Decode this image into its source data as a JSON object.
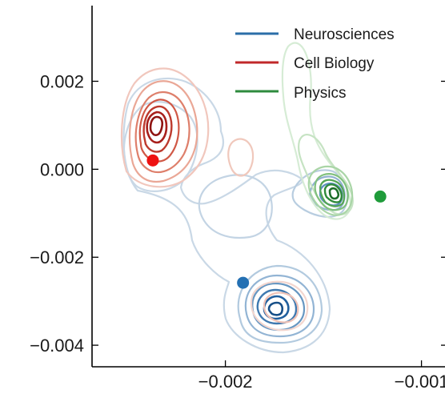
{
  "chart_data": {
    "type": "contour",
    "title": "",
    "xlabel": "",
    "ylabel": "",
    "xlim": [
      -0.00268,
      -0.00088
    ],
    "ylim": [
      -0.00449,
      0.00372
    ],
    "x_ticks": [
      {
        "value": -0.002,
        "label": "−0.002"
      },
      {
        "value": -0.001,
        "label": "−0.001"
      }
    ],
    "y_ticks": [
      {
        "value": 0.002,
        "label": "0.002"
      },
      {
        "value": 0.0,
        "label": "0.000"
      },
      {
        "value": -0.002,
        "label": "−0.002"
      },
      {
        "value": -0.004,
        "label": "−0.004"
      }
    ],
    "grid": false,
    "legend_position": "top-right",
    "series": [
      {
        "name": "Neurosciences",
        "color": "#2b6ea8",
        "highlight_point": {
          "x": -0.00191,
          "y": -0.00258
        },
        "density_centers": [
          {
            "x": -0.00164,
            "y": -0.00327
          },
          {
            "x": -0.00124,
            "y": -0.00062
          },
          {
            "x": -0.00234,
            "y": 0.00018
          }
        ]
      },
      {
        "name": "Cell Biology",
        "color": "#c0282a",
        "highlight_point": {
          "x": -0.00237,
          "y": 0.0002
        },
        "density_centers": [
          {
            "x": -0.00232,
            "y": 0.00098
          },
          {
            "x": -0.00164,
            "y": -0.00318
          }
        ]
      },
      {
        "name": "Physics",
        "color": "#2e8b3e",
        "highlight_point": {
          "x": -0.00121,
          "y": -0.00062
        },
        "density_centers": [
          {
            "x": -0.00124,
            "y": -0.0005
          },
          {
            "x": -0.00142,
            "y": 0.0019
          }
        ]
      }
    ]
  },
  "colors": {
    "neuro_point": "#2470b3",
    "cell_point": "#ee1111",
    "physics_point": "#1f9b3a"
  }
}
